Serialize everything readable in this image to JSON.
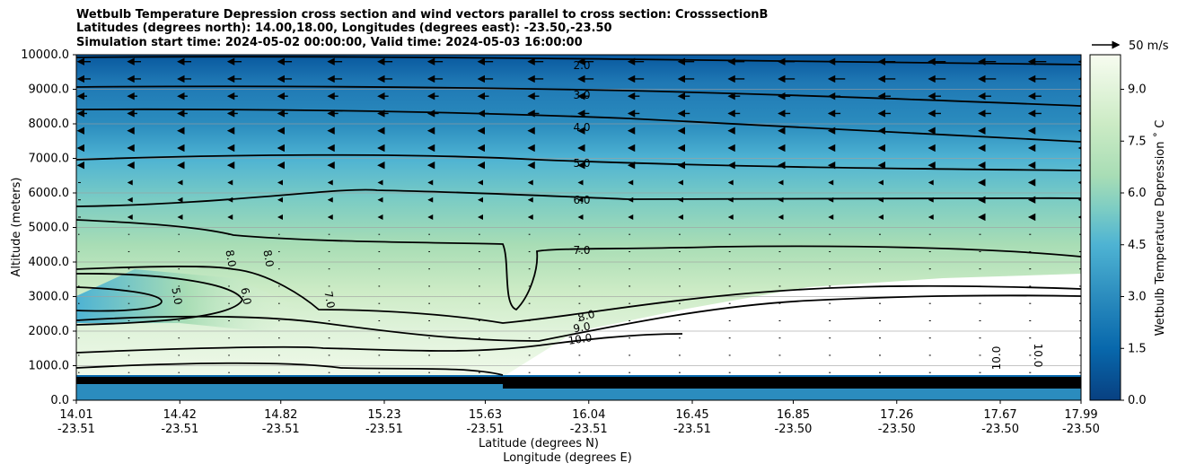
{
  "chart_data": {
    "type": "heatmap",
    "title_lines": [
      "Wetbulb Temperature Depression cross section and wind vectors parallel to cross section: CrosssectionB",
      "Latitudes (degrees north): 14.00,18.00, Longitudes (degrees east): -23.50,-23.50",
      "Simulation start time: 2024-05-02 00:00:00, Valid time: 2024-05-03 16:00:00"
    ],
    "xlabel": "Latitude (degrees N)",
    "xlabel2": "Longitude (degrees E)",
    "ylabel": "Altitude (meters)",
    "ylim": [
      0,
      10000
    ],
    "yticks": [
      "0.0",
      "1000.0",
      "2000.0",
      "3000.0",
      "4000.0",
      "5000.0",
      "6000.0",
      "7000.0",
      "8000.0",
      "9000.0",
      "10000.0"
    ],
    "xticks": [
      {
        "lat": "14.01",
        "lon": "-23.51"
      },
      {
        "lat": "14.42",
        "lon": "-23.51"
      },
      {
        "lat": "14.82",
        "lon": "-23.51"
      },
      {
        "lat": "15.23",
        "lon": "-23.51"
      },
      {
        "lat": "15.63",
        "lon": "-23.51"
      },
      {
        "lat": "16.04",
        "lon": "-23.51"
      },
      {
        "lat": "16.45",
        "lon": "-23.51"
      },
      {
        "lat": "16.85",
        "lon": "-23.50"
      },
      {
        "lat": "17.26",
        "lon": "-23.50"
      },
      {
        "lat": "17.67",
        "lon": "-23.50"
      },
      {
        "lat": "17.99",
        "lon": "-23.50"
      }
    ],
    "colorbar": {
      "label": "Wetbulb Temperature Depression ˚ C",
      "range": [
        0,
        10
      ],
      "ticks": [
        "0.0",
        "1.5",
        "3.0",
        "4.5",
        "6.0",
        "7.5",
        "9.0"
      ]
    },
    "quiver_key": "50 m/s",
    "contour_labels": [
      "2.0",
      "3.0",
      "4.0",
      "5.0",
      "6.0",
      "7.0",
      "8.0",
      "9.0",
      "10.0",
      "8.0",
      "8.0",
      "5.0",
      "6.0",
      "7.0",
      "10.0",
      "10.0"
    ],
    "colors": {
      "low": "#08589e",
      "mid": "#7fcdbb",
      "high": "#f7fcf0",
      "contour": "#000000"
    }
  }
}
